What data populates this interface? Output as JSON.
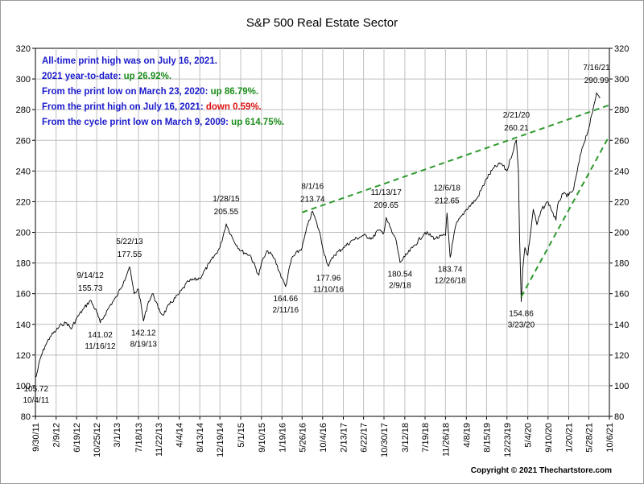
{
  "chart_data": {
    "type": "line",
    "title": "S&P 500 Real Estate Sector",
    "ylim": [
      80,
      320
    ],
    "y_ticks": [
      80,
      100,
      120,
      140,
      160,
      180,
      200,
      220,
      240,
      260,
      280,
      300,
      320
    ],
    "x_ticks": [
      "9/30/11",
      "2/9/12",
      "6/19/12",
      "10/25/12",
      "3/1/13",
      "7/18/13",
      "11/22/13",
      "4/4/14",
      "8/13/14",
      "12/19/14",
      "5/1/15",
      "9/10/15",
      "1/19/16",
      "5/26/16",
      "10/4/16",
      "2/13/17",
      "6/22/17",
      "10/30/17",
      "3/12/18",
      "7/19/18",
      "11/26/18",
      "4/8/19",
      "8/15/19",
      "12/23/19",
      "5/4/20",
      "9/10/20",
      "1/20/21",
      "5/28/21",
      "10/6/21"
    ],
    "x_range": [
      "9/30/11",
      "10/6/21"
    ],
    "grid": true,
    "series": [
      {
        "color": "#000000",
        "points": [
          [
            "10/4/11",
            105.72
          ],
          [
            "11/1/11",
            118
          ],
          [
            "12/1/11",
            126
          ],
          [
            "1/2/12",
            132
          ],
          [
            "2/9/12",
            136
          ],
          [
            "3/15/12",
            140
          ],
          [
            "4/16/12",
            141
          ],
          [
            "5/15/12",
            137
          ],
          [
            "6/19/12",
            144
          ],
          [
            "8/1/12",
            150
          ],
          [
            "9/14/12",
            155.73
          ],
          [
            "10/25/12",
            148
          ],
          [
            "11/16/12",
            141.02
          ],
          [
            "12/15/12",
            146
          ],
          [
            "1/15/13",
            152
          ],
          [
            "3/1/13",
            158
          ],
          [
            "4/15/13",
            168
          ],
          [
            "5/22/13",
            177.55
          ],
          [
            "6/20/13",
            160
          ],
          [
            "7/18/13",
            163
          ],
          [
            "8/19/13",
            142.12
          ],
          [
            "9/20/13",
            155
          ],
          [
            "10/20/13",
            160
          ],
          [
            "11/22/13",
            150
          ],
          [
            "12/20/13",
            146
          ],
          [
            "2/1/14",
            153
          ],
          [
            "4/4/14",
            160
          ],
          [
            "6/1/14",
            168
          ],
          [
            "8/13/14",
            170
          ],
          [
            "10/15/14",
            180
          ],
          [
            "12/19/14",
            190
          ],
          [
            "1/28/15",
            205.55
          ],
          [
            "3/15/15",
            195
          ],
          [
            "5/1/15",
            188
          ],
          [
            "7/1/15",
            185
          ],
          [
            "8/24/15",
            172
          ],
          [
            "9/10/15",
            180
          ],
          [
            "10/20/15",
            188
          ],
          [
            "12/1/15",
            183
          ],
          [
            "1/19/16",
            170
          ],
          [
            "2/11/16",
            164.66
          ],
          [
            "3/20/16",
            183
          ],
          [
            "5/26/16",
            190
          ],
          [
            "7/1/16",
            205
          ],
          [
            "8/1/16",
            213.74
          ],
          [
            "9/15/16",
            200
          ],
          [
            "10/4/16",
            190
          ],
          [
            "11/10/16",
            177.96
          ],
          [
            "12/15/16",
            185
          ],
          [
            "2/13/17",
            190
          ],
          [
            "4/15/17",
            195
          ],
          [
            "6/22/17",
            198
          ],
          [
            "8/20/17",
            196
          ],
          [
            "9/15/17",
            201
          ],
          [
            "10/30/17",
            200
          ],
          [
            "11/13/17",
            209.65
          ],
          [
            "12/20/17",
            200
          ],
          [
            "1/15/18",
            195
          ],
          [
            "2/9/18",
            180.54
          ],
          [
            "3/12/18",
            184
          ],
          [
            "5/1/18",
            190
          ],
          [
            "7/19/18",
            200
          ],
          [
            "9/20/18",
            196
          ],
          [
            "11/26/18",
            198
          ],
          [
            "12/6/18",
            212.65
          ],
          [
            "12/26/18",
            183.74
          ],
          [
            "2/1/19",
            205
          ],
          [
            "4/8/19",
            215
          ],
          [
            "6/15/19",
            222
          ],
          [
            "8/15/19",
            235
          ],
          [
            "10/1/19",
            242
          ],
          [
            "11/15/19",
            245
          ],
          [
            "12/23/19",
            240
          ],
          [
            "1/15/20",
            248
          ],
          [
            "2/21/20",
            260.21
          ],
          [
            "3/5/20",
            240
          ],
          [
            "3/12/20",
            200
          ],
          [
            "3/23/20",
            154.86
          ],
          [
            "4/1/20",
            175
          ],
          [
            "4/15/20",
            190
          ],
          [
            "5/4/20",
            185
          ],
          [
            "6/8/20",
            215
          ],
          [
            "7/1/20",
            205
          ],
          [
            "8/1/20",
            215
          ],
          [
            "9/10/20",
            220
          ],
          [
            "10/30/20",
            208
          ],
          [
            "11/15/20",
            220
          ],
          [
            "12/15/20",
            225
          ],
          [
            "1/20/21",
            224
          ],
          [
            "2/20/21",
            228
          ],
          [
            "3/15/21",
            240
          ],
          [
            "4/15/21",
            255
          ],
          [
            "5/28/21",
            268
          ],
          [
            "6/20/21",
            278
          ],
          [
            "7/16/21",
            290.99
          ],
          [
            "7/30/21",
            289
          ],
          [
            "8/9/21",
            288
          ]
        ]
      }
    ],
    "trendlines": [
      {
        "from": [
          "5/26/16",
          213
        ],
        "to": [
          "10/6/21",
          283
        ],
        "style": "dashed",
        "color": "#2e9a2e"
      },
      {
        "from": [
          "3/23/20",
          158
        ],
        "to": [
          "10/6/21",
          263
        ],
        "style": "dashed",
        "color": "#2e9a2e"
      }
    ],
    "annotations": [
      {
        "date": "10/4/11",
        "value": "105.72",
        "label": "10/4/11",
        "placement": "below"
      },
      {
        "date": "9/14/12",
        "value": "155.73",
        "label": "9/14/12",
        "placement": "above"
      },
      {
        "date": "11/16/12",
        "value": "141.02",
        "label": "11/16/12",
        "placement": "below"
      },
      {
        "date": "5/22/13",
        "value": "177.55",
        "label": "5/22/13",
        "placement": "above"
      },
      {
        "date": "8/19/13",
        "value": "142.12",
        "label": "8/19/13",
        "placement": "below"
      },
      {
        "date": "1/28/15",
        "value": "205.55",
        "label": "1/28/15",
        "placement": "above"
      },
      {
        "date": "2/11/16",
        "value": "164.66",
        "label": "2/11/16",
        "placement": "below"
      },
      {
        "date": "8/1/16",
        "value": "213.74",
        "label": "8/1/16",
        "placement": "above"
      },
      {
        "date": "11/10/16",
        "value": "177.96",
        "label": "11/10/16",
        "placement": "below"
      },
      {
        "date": "11/13/17",
        "value": "209.65",
        "label": "11/13/17",
        "placement": "above"
      },
      {
        "date": "2/9/18",
        "value": "180.54",
        "label": "2/9/18",
        "placement": "below"
      },
      {
        "date": "12/6/18",
        "value": "212.65",
        "label": "12/6/18",
        "placement": "above"
      },
      {
        "date": "12/26/18",
        "value": "183.74",
        "label": "12/26/18",
        "placement": "below"
      },
      {
        "date": "2/21/20",
        "value": "260.21",
        "label": "2/21/20",
        "placement": "above"
      },
      {
        "date": "3/23/20",
        "value": "154.86",
        "label": "3/23/20",
        "placement": "below"
      },
      {
        "date": "7/16/21",
        "value": "290.99",
        "label": "7/16/21",
        "placement": "above"
      }
    ],
    "info_lines": [
      {
        "text": "All-time print high was on July 16, 2021.",
        "color": "#1a1acc",
        "parts": []
      },
      {
        "text": "2021 year-to-date:",
        "color": "#1a1acc",
        "suffix": "up 26.92%.",
        "suffix_color": "#1a8c1a"
      },
      {
        "text": "From the print low on March 23, 2020:",
        "color": "#1a1acc",
        "suffix": "up 86.79%.",
        "suffix_color": "#1a8c1a"
      },
      {
        "text": "From the print high on July 16, 2021:",
        "color": "#1a1acc",
        "suffix": "down 0.59%.",
        "suffix_color": "#dd1111"
      },
      {
        "text": "From the cycle print low on March 9, 2009:",
        "color": "#1a1acc",
        "suffix": "up 614.75%.",
        "suffix_color": "#1a8c1a"
      }
    ]
  },
  "copyright": "Copyright © 2021 Thechartstore.com"
}
